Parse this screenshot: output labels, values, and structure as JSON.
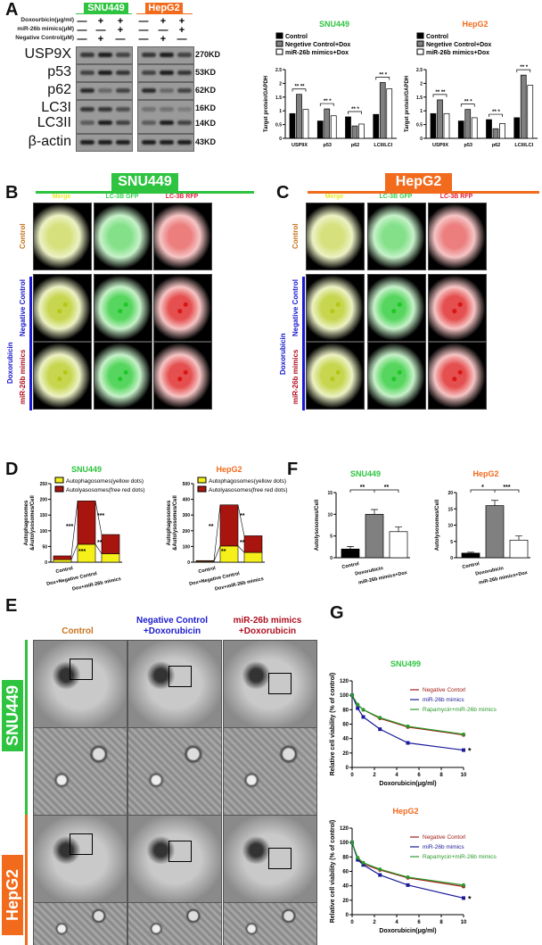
{
  "panels": {
    "A": "A",
    "B": "B",
    "C": "C",
    "D": "D",
    "E": "E",
    "F": "F",
    "G": "G"
  },
  "colors": {
    "snu": "#2ec440",
    "hepg2": "#f26b1d",
    "control": "#c8741c",
    "nc": "#1a1ad0",
    "mir": "#b01020"
  },
  "western": {
    "cell_lines": [
      "SNU449",
      "HepG2"
    ],
    "conditions": [
      {
        "label": "Doxourbicin(μg/ml)",
        "signs": [
          "—",
          "+",
          "+"
        ]
      },
      {
        "label": "miR-26b mimics(μM)",
        "signs": [
          "—",
          "—",
          "+"
        ]
      },
      {
        "label": "Negative Control(μM)",
        "signs": [
          "—",
          "+",
          "—"
        ]
      }
    ],
    "proteins": [
      {
        "name": "USP9X",
        "kd": "270KD"
      },
      {
        "name": "p53",
        "kd": "53KD"
      },
      {
        "name": "p62",
        "kd": "62KD"
      },
      {
        "name": "LC3I",
        "kd": "16KD"
      },
      {
        "name": "LC3II",
        "kd": "14KD"
      },
      {
        "name": "β-actin",
        "kd": "43KD"
      }
    ]
  },
  "fluorescence": {
    "B_title": "SNU449",
    "C_title": "HepG2",
    "columns": [
      "Merge",
      "LC-3B GFP",
      "LC-3B RFP"
    ],
    "rows": [
      "Control",
      "Negative Control",
      "miR-26b mimics"
    ],
    "group": "Doxorubicin"
  },
  "em": {
    "columns": [
      [
        "Control",
        ""
      ],
      [
        "Negative Control",
        "+Doxorubicin"
      ],
      [
        "miR-26b mimics",
        "+Doxorubicin"
      ]
    ],
    "rows": [
      "SNU449",
      "HepG2"
    ]
  },
  "chart_data": [
    {
      "id": "A1",
      "type": "bar",
      "title": "SNU449",
      "ylabel": "Target protein/GAPDH",
      "ylim": [
        0,
        2.5
      ],
      "yticks": [
        0,
        0.5,
        1.0,
        1.5,
        2.0,
        2.5
      ],
      "categories": [
        "USP9X",
        "p53",
        "p62",
        "LCII/LCI"
      ],
      "series": [
        {
          "name": "Control",
          "values": [
            0.9,
            0.63,
            0.78,
            0.87
          ]
        },
        {
          "name": "Negetive Control+Dox",
          "values": [
            1.6,
            1.07,
            0.45,
            2.03
          ]
        },
        {
          "name": "miR-26b mimics+Dox",
          "values": [
            1.05,
            0.82,
            0.52,
            1.8
          ]
        }
      ],
      "sig": [
        "** **",
        "** *",
        "** *",
        "** *"
      ]
    },
    {
      "id": "A2",
      "type": "bar",
      "title": "HepG2",
      "ylabel": "Target protein/GAPDH",
      "ylim": [
        0,
        2.5
      ],
      "yticks": [
        0,
        0.5,
        1.0,
        1.5,
        2.0,
        2.5
      ],
      "categories": [
        "USP9X",
        "p53",
        "p62",
        "LCII/LCI"
      ],
      "series": [
        {
          "name": "Control",
          "values": [
            0.9,
            0.63,
            0.68,
            0.75
          ]
        },
        {
          "name": "Negetive Control+Dox",
          "values": [
            1.4,
            1.05,
            0.35,
            2.3
          ]
        },
        {
          "name": "miR-26b mimics+Dox",
          "values": [
            0.9,
            0.75,
            0.54,
            1.93
          ]
        }
      ],
      "sig": [
        "** **",
        "** *",
        "** *",
        "** *"
      ]
    },
    {
      "id": "D1",
      "type": "bar",
      "stacked": true,
      "title": "SNU449",
      "ylabel": "Autophagosomes &Autolysosomes/Cell",
      "ylim": [
        0,
        250
      ],
      "yticks": [
        0,
        50,
        100,
        150,
        200,
        250
      ],
      "categories": [
        "Control",
        "Dox+Negative Control",
        "Dox+miR-26b mimics"
      ],
      "series": [
        {
          "name": "Autophagosomes(yellow dots)",
          "values": [
            8,
            57,
            27
          ]
        },
        {
          "name": "Autolyasosomes(free red dots)",
          "values": [
            12,
            138,
            61
          ]
        }
      ],
      "sig": [
        "***",
        "***",
        "***",
        "**"
      ]
    },
    {
      "id": "D2",
      "type": "bar",
      "stacked": true,
      "title": "HepG2",
      "ylabel": "Autophagosomes &Autolysosomes/Cell",
      "ylim": [
        0,
        500
      ],
      "yticks": [
        0,
        100,
        200,
        300,
        400,
        500
      ],
      "categories": [
        "Control",
        "Dox+Negative Control",
        "Dox+miR-26b mimics"
      ],
      "series": [
        {
          "name": "Autophagosomes(yellow dots)",
          "values": [
            5,
            103,
            62
          ]
        },
        {
          "name": "Autolyasosomes(free red dots)",
          "values": [
            5,
            262,
            106
          ]
        }
      ],
      "sig": [
        "**",
        "**",
        "**",
        "**"
      ]
    },
    {
      "id": "F1",
      "type": "bar",
      "title": "SNU449",
      "ylabel": "Autolysosomes/Cell",
      "ylim": [
        0,
        15
      ],
      "yticks": [
        0,
        5,
        10,
        15
      ],
      "categories": [
        "Control",
        "Doxorubicin",
        "miR-26b mimics+Dox"
      ],
      "values": [
        2,
        10,
        6
      ],
      "errors": [
        0.6,
        1.1,
        1.1
      ],
      "sig": [
        "**",
        "**"
      ]
    },
    {
      "id": "F2",
      "type": "bar",
      "title": "HepG2",
      "ylabel": "Autolysosomes/Cell",
      "ylim": [
        0,
        20
      ],
      "yticks": [
        0,
        5,
        10,
        15,
        20
      ],
      "categories": [
        "Control",
        "Doxorubicin",
        "miR-26b mimics+Dox"
      ],
      "values": [
        1.4,
        16,
        5.4
      ],
      "errors": [
        0.3,
        1.6,
        1.3
      ],
      "sig": [
        "*",
        "***"
      ]
    },
    {
      "id": "G1",
      "type": "line",
      "title": "SNU499",
      "xlabel": "Doxorubicin(μg/ml)",
      "ylabel": "Relative cell viability (% of control)",
      "xlim": [
        0,
        10
      ],
      "ylim": [
        0,
        120
      ],
      "xticks": [
        0,
        2,
        4,
        6,
        8,
        10
      ],
      "yticks": [
        0,
        20,
        40,
        60,
        80,
        100,
        120
      ],
      "x": [
        0,
        0.5,
        1,
        2.5,
        5,
        10
      ],
      "series": [
        {
          "name": "Negative Contorl",
          "values": [
            100,
            87,
            80,
            68,
            56,
            45
          ]
        },
        {
          "name": "miR-26b mimics",
          "values": [
            100,
            82,
            70,
            53,
            34,
            24
          ]
        },
        {
          "name": "Rapamycin+miR-26b mimics",
          "values": [
            100,
            87,
            80,
            69,
            57,
            46
          ]
        }
      ],
      "annotation": "*"
    },
    {
      "id": "G2",
      "type": "line",
      "title": "HepG2",
      "xlabel": "Doxorubicin(μg/ml)",
      "ylabel": "Relative cell viability (% of control)",
      "xlim": [
        0,
        10
      ],
      "ylim": [
        0,
        120
      ],
      "xticks": [
        0,
        2,
        4,
        6,
        8,
        10
      ],
      "yticks": [
        0,
        20,
        40,
        60,
        80,
        100,
        120
      ],
      "x": [
        0,
        0.5,
        1,
        2.5,
        5,
        10
      ],
      "series": [
        {
          "name": "Negative Contorl",
          "values": [
            100,
            78,
            70,
            62,
            51,
            39
          ]
        },
        {
          "name": "miR-26b mimics",
          "values": [
            100,
            76,
            69,
            55,
            41,
            23
          ]
        },
        {
          "name": "Rapamycin+miR-26b mimics",
          "values": [
            100,
            79,
            72,
            63,
            52,
            41
          ]
        }
      ],
      "annotation": "*"
    }
  ]
}
